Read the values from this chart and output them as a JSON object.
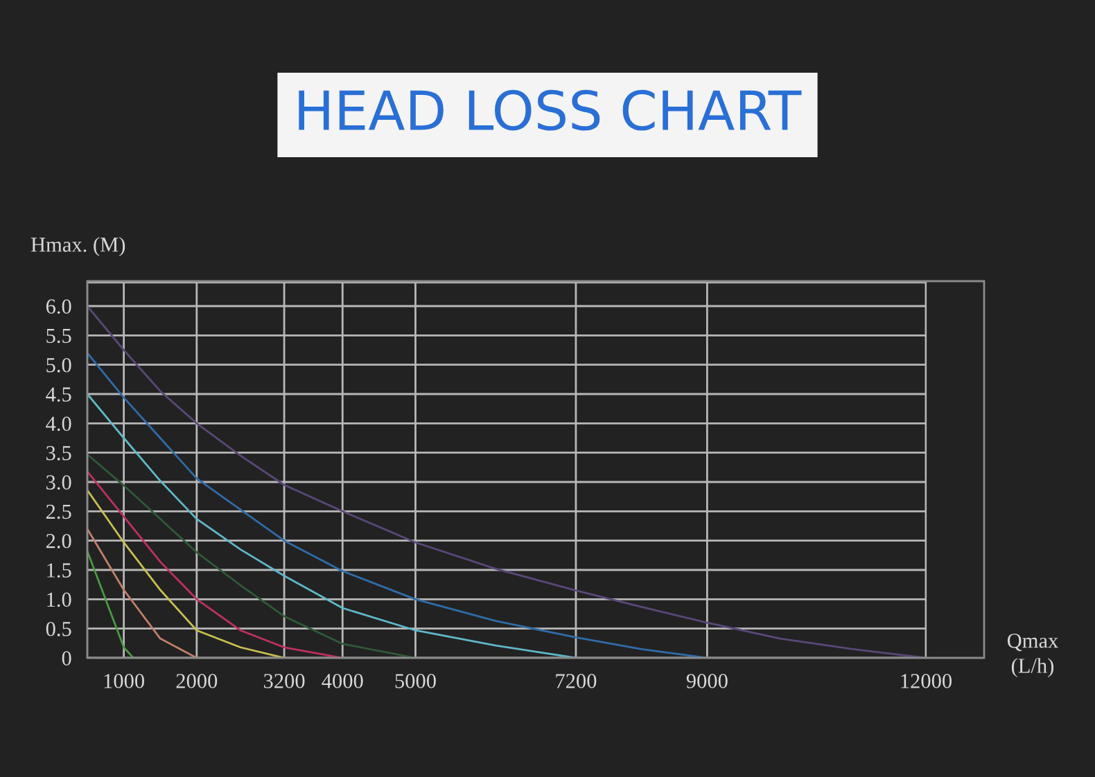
{
  "chart_data": {
    "type": "line",
    "title": "HEAD LOSS CHART",
    "ylabel": "Hmax. (M)",
    "xlabel": "Qmax\n(L/h)",
    "xlim": [
      500,
      12000
    ],
    "ylim": [
      0,
      6.4
    ],
    "xticks": [
      1000,
      2000,
      3200,
      4000,
      5000,
      7200,
      9000,
      12000
    ],
    "yticks": [
      0,
      {
        "value": 0.5,
        "label": "0.5"
      },
      {
        "value": 1,
        "label": "1.0"
      },
      {
        "value": 1.5,
        "label": "1.5"
      },
      {
        "value": 2,
        "label": "2.0"
      },
      {
        "value": 2.5,
        "label": "2.5"
      },
      {
        "value": 3,
        "label": "3.0"
      },
      {
        "value": 3.5,
        "label": "3.5"
      },
      {
        "value": 4,
        "label": "4.0"
      },
      {
        "value": 4.5,
        "label": "4.5"
      },
      {
        "value": 5,
        "label": "5.0"
      },
      {
        "value": 5.5,
        "label": "5.5"
      },
      {
        "value": 6,
        "label": "6.0"
      }
    ],
    "grid": true,
    "marker": "none",
    "line_style": "solid",
    "series": [
      {
        "color": "#5a4878",
        "x": [
          500,
          1000,
          1500,
          2000,
          2600,
          3200,
          4000,
          5000,
          6100,
          7200,
          8100,
          9000,
          10000,
          11000,
          12000
        ],
        "values": [
          6.0,
          5.25,
          4.55,
          4.0,
          3.45,
          2.95,
          2.5,
          1.97,
          1.52,
          1.15,
          0.87,
          0.6,
          0.33,
          0.15,
          0
        ]
      },
      {
        "color": "#2f6ca8",
        "x": [
          500,
          1000,
          1500,
          2000,
          2600,
          3200,
          4000,
          5000,
          6100,
          7200,
          8100,
          9000
        ],
        "values": [
          5.2,
          4.44,
          3.75,
          3.06,
          2.53,
          2.0,
          1.48,
          1.0,
          0.63,
          0.35,
          0.15,
          0
        ]
      },
      {
        "color": "#5fb8c8",
        "x": [
          500,
          1000,
          1500,
          2000,
          2600,
          3200,
          4000,
          5000,
          6100,
          7200
        ],
        "values": [
          4.5,
          3.75,
          3.02,
          2.37,
          1.85,
          1.4,
          0.85,
          0.47,
          0.21,
          0
        ]
      },
      {
        "color": "#2e5a3a",
        "x": [
          500,
          1000,
          1500,
          2000,
          2600,
          3200,
          4000,
          5000
        ],
        "values": [
          3.47,
          2.94,
          2.37,
          1.8,
          1.24,
          0.71,
          0.24,
          0
        ]
      },
      {
        "color": "#c03060",
        "x": [
          500,
          1000,
          1500,
          2000,
          2600,
          3200,
          4000
        ],
        "values": [
          3.18,
          2.41,
          1.64,
          1.0,
          0.47,
          0.18,
          0
        ]
      },
      {
        "color": "#c8c050",
        "x": [
          500,
          1000,
          1500,
          2000,
          2600,
          3200
        ],
        "values": [
          2.86,
          1.97,
          1.16,
          0.47,
          0.18,
          0
        ]
      },
      {
        "color": "#c0806a",
        "x": [
          500,
          1000,
          1500,
          2000
        ],
        "values": [
          2.2,
          1.16,
          0.33,
          0
        ]
      },
      {
        "color": "#4a9a40",
        "x": [
          500,
          750,
          1000,
          1130
        ],
        "values": [
          1.82,
          1.0,
          0.18,
          0
        ]
      }
    ]
  }
}
